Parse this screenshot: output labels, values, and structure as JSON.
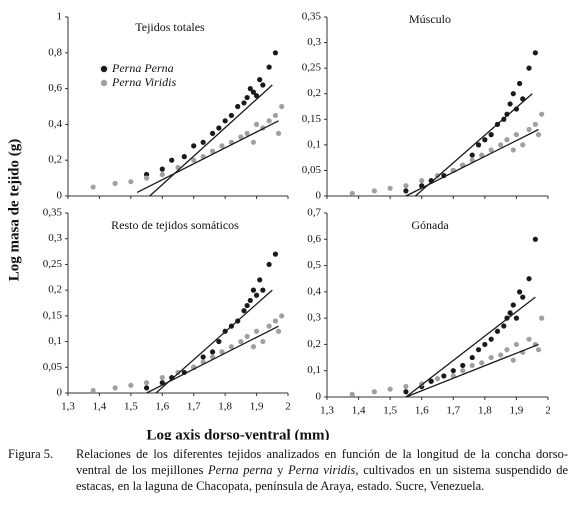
{
  "chart_data": [
    {
      "type": "scatter",
      "title": "Tejidos totales",
      "xlim": [
        1.3,
        2
      ],
      "xticks": [
        1.3,
        1.4,
        1.5,
        1.6,
        1.7,
        1.8,
        1.9,
        2
      ],
      "ylim": [
        0,
        1
      ],
      "yticks": [
        0,
        {
          "value": 0.2,
          "label": "0,2"
        },
        {
          "value": 0.4,
          "label": "0,4"
        },
        {
          "value": 0.6,
          "label": "0,6"
        },
        {
          "value": 0.8,
          "label": "0,8"
        },
        1
      ],
      "legend": "upper left",
      "series": [
        {
          "name": "Perna Perna",
          "color": "#1a1a1a",
          "x": [
            1.55,
            1.6,
            1.63,
            1.67,
            1.7,
            1.73,
            1.76,
            1.78,
            1.8,
            1.82,
            1.84,
            1.86,
            1.87,
            1.88,
            1.89,
            1.9,
            1.91,
            1.92,
            1.94,
            1.96
          ],
          "values": [
            0.12,
            0.15,
            0.2,
            0.22,
            0.28,
            0.3,
            0.35,
            0.38,
            0.42,
            0.45,
            0.5,
            0.52,
            0.55,
            0.6,
            0.58,
            0.56,
            0.65,
            0.62,
            0.72,
            0.8
          ]
        },
        {
          "name": "Perna Viridis",
          "color": "#a0a0a0",
          "x": [
            1.38,
            1.45,
            1.5,
            1.55,
            1.6,
            1.65,
            1.7,
            1.73,
            1.76,
            1.79,
            1.82,
            1.85,
            1.87,
            1.89,
            1.9,
            1.92,
            1.94,
            1.96,
            1.97,
            1.98
          ],
          "values": [
            0.05,
            0.07,
            0.08,
            0.1,
            0.12,
            0.16,
            0.2,
            0.22,
            0.25,
            0.28,
            0.3,
            0.33,
            0.35,
            0.3,
            0.4,
            0.38,
            0.42,
            0.45,
            0.35,
            0.5
          ]
        }
      ],
      "lines": [
        {
          "color": "#1a1a1a",
          "x": [
            1.56,
            1.95
          ],
          "values": [
            0,
            0.62
          ]
        },
        {
          "color": "#1a1a1a",
          "x": [
            1.52,
            1.97
          ],
          "values": [
            0.02,
            0.42
          ]
        }
      ]
    },
    {
      "type": "scatter",
      "title": "Músculo",
      "xlim": [
        1.3,
        2
      ],
      "xticks": [
        1.3,
        1.4,
        1.5,
        1.6,
        1.7,
        1.8,
        1.9,
        2
      ],
      "ylim": [
        0,
        0.35
      ],
      "yticks": [
        0,
        {
          "value": 0.05,
          "label": "0,05"
        },
        {
          "value": 0.1,
          "label": "0,1"
        },
        {
          "value": 0.15,
          "label": "0,15"
        },
        {
          "value": 0.2,
          "label": "0,2"
        },
        {
          "value": 0.25,
          "label": "0,25"
        },
        {
          "value": 0.3,
          "label": "0,3"
        },
        {
          "value": 0.35,
          "label": "0,35"
        }
      ],
      "series": [
        {
          "color": "#1a1a1a",
          "x": [
            1.55,
            1.6,
            1.63,
            1.67,
            1.7,
            1.73,
            1.76,
            1.78,
            1.8,
            1.82,
            1.84,
            1.86,
            1.87,
            1.88,
            1.89,
            1.9,
            1.91,
            1.92,
            1.94,
            1.96
          ],
          "values": [
            0.01,
            0.02,
            0.03,
            0.04,
            0.05,
            0.06,
            0.08,
            0.1,
            0.11,
            0.12,
            0.14,
            0.15,
            0.16,
            0.18,
            0.2,
            0.17,
            0.22,
            0.19,
            0.25,
            0.28
          ]
        },
        {
          "color": "#a0a0a0",
          "x": [
            1.38,
            1.45,
            1.5,
            1.55,
            1.6,
            1.65,
            1.7,
            1.73,
            1.76,
            1.79,
            1.82,
            1.85,
            1.87,
            1.89,
            1.9,
            1.92,
            1.94,
            1.96,
            1.97,
            1.98
          ],
          "values": [
            0.005,
            0.01,
            0.015,
            0.02,
            0.03,
            0.04,
            0.05,
            0.06,
            0.07,
            0.08,
            0.09,
            0.1,
            0.11,
            0.09,
            0.12,
            0.1,
            0.13,
            0.14,
            0.12,
            0.16
          ]
        }
      ],
      "lines": [
        {
          "color": "#1a1a1a",
          "x": [
            1.58,
            1.95
          ],
          "values": [
            0,
            0.2
          ]
        },
        {
          "color": "#1a1a1a",
          "x": [
            1.55,
            1.97
          ],
          "values": [
            0,
            0.13
          ]
        }
      ]
    },
    {
      "type": "scatter",
      "title": "Resto de tejidos somáticos",
      "xlim": [
        1.3,
        2
      ],
      "xticks": [
        {
          "value": 1.3,
          "label": "1,3"
        },
        {
          "value": 1.4,
          "label": "1,4"
        },
        {
          "value": 1.5,
          "label": "1,5"
        },
        {
          "value": 1.6,
          "label": "1,6"
        },
        {
          "value": 1.7,
          "label": "1,7"
        },
        {
          "value": 1.8,
          "label": "1,8"
        },
        {
          "value": 1.9,
          "label": "1,9"
        },
        2
      ],
      "ylim": [
        0,
        0.35
      ],
      "yticks": [
        0,
        {
          "value": 0.05,
          "label": "0,05"
        },
        {
          "value": 0.1,
          "label": "0,1"
        },
        {
          "value": 0.15,
          "label": "0,15"
        },
        {
          "value": 0.2,
          "label": "0,2"
        },
        {
          "value": 0.25,
          "label": "0,25"
        },
        {
          "value": 0.3,
          "label": "0,3"
        },
        {
          "value": 0.35,
          "label": "0,35"
        }
      ],
      "series": [
        {
          "color": "#1a1a1a",
          "x": [
            1.55,
            1.6,
            1.63,
            1.67,
            1.7,
            1.73,
            1.76,
            1.78,
            1.8,
            1.82,
            1.84,
            1.86,
            1.87,
            1.88,
            1.89,
            1.9,
            1.91,
            1.92,
            1.94,
            1.96
          ],
          "values": [
            0.01,
            0.02,
            0.03,
            0.04,
            0.05,
            0.07,
            0.08,
            0.1,
            0.12,
            0.13,
            0.14,
            0.16,
            0.17,
            0.18,
            0.2,
            0.19,
            0.22,
            0.2,
            0.25,
            0.27
          ]
        },
        {
          "color": "#a0a0a0",
          "x": [
            1.38,
            1.45,
            1.5,
            1.55,
            1.6,
            1.65,
            1.7,
            1.73,
            1.76,
            1.79,
            1.82,
            1.85,
            1.87,
            1.89,
            1.9,
            1.92,
            1.94,
            1.96,
            1.97,
            1.98
          ],
          "values": [
            0.005,
            0.01,
            0.015,
            0.02,
            0.03,
            0.04,
            0.05,
            0.06,
            0.07,
            0.08,
            0.09,
            0.1,
            0.11,
            0.09,
            0.12,
            0.1,
            0.13,
            0.14,
            0.12,
            0.15
          ]
        }
      ],
      "lines": [
        {
          "color": "#1a1a1a",
          "x": [
            1.58,
            1.95
          ],
          "values": [
            0,
            0.2
          ]
        },
        {
          "color": "#1a1a1a",
          "x": [
            1.55,
            1.97
          ],
          "values": [
            0,
            0.13
          ]
        }
      ]
    },
    {
      "type": "scatter",
      "title": "Gónada",
      "xlim": [
        1.3,
        2
      ],
      "xticks": [
        {
          "value": 1.3,
          "label": "1,3"
        },
        {
          "value": 1.4,
          "label": "1,4"
        },
        {
          "value": 1.5,
          "label": "1,5"
        },
        {
          "value": 1.6,
          "label": "1,6"
        },
        {
          "value": 1.7,
          "label": "1,7"
        },
        {
          "value": 1.8,
          "label": "1,8"
        },
        {
          "value": 1.9,
          "label": "1,9"
        },
        2
      ],
      "ylim": [
        0,
        0.7
      ],
      "yticks": [
        0,
        {
          "value": 0.1,
          "label": "0,1"
        },
        {
          "value": 0.2,
          "label": "0,2"
        },
        {
          "value": 0.3,
          "label": "0,3"
        },
        {
          "value": 0.4,
          "label": "0,4"
        },
        {
          "value": 0.5,
          "label": "0,5"
        },
        {
          "value": 0.6,
          "label": "0,6"
        },
        {
          "value": 0.7,
          "label": "0,7"
        }
      ],
      "series": [
        {
          "color": "#1a1a1a",
          "x": [
            1.55,
            1.6,
            1.63,
            1.67,
            1.7,
            1.73,
            1.76,
            1.78,
            1.8,
            1.82,
            1.84,
            1.86,
            1.87,
            1.88,
            1.89,
            1.9,
            1.91,
            1.92,
            1.94,
            1.96
          ],
          "values": [
            0.02,
            0.04,
            0.06,
            0.08,
            0.1,
            0.12,
            0.15,
            0.18,
            0.2,
            0.22,
            0.25,
            0.27,
            0.3,
            0.32,
            0.35,
            0.3,
            0.4,
            0.38,
            0.45,
            0.6
          ]
        },
        {
          "color": "#a0a0a0",
          "x": [
            1.38,
            1.45,
            1.5,
            1.55,
            1.6,
            1.65,
            1.7,
            1.73,
            1.76,
            1.79,
            1.82,
            1.85,
            1.87,
            1.89,
            1.9,
            1.92,
            1.94,
            1.96,
            1.97,
            1.98
          ],
          "values": [
            0.01,
            0.02,
            0.03,
            0.04,
            0.05,
            0.07,
            0.08,
            0.1,
            0.12,
            0.13,
            0.15,
            0.16,
            0.18,
            0.14,
            0.2,
            0.17,
            0.22,
            0.2,
            0.18,
            0.3
          ]
        }
      ],
      "lines": [
        {
          "color": "#1a1a1a",
          "x": [
            1.55,
            1.96
          ],
          "values": [
            0,
            0.38
          ]
        },
        {
          "color": "#1a1a1a",
          "x": [
            1.55,
            1.97
          ],
          "values": [
            0,
            0.2
          ]
        }
      ]
    }
  ],
  "xlabel": "Log axis dorso-ventral (mm)",
  "ylabel": "Log masa de tejido (g)",
  "caption": {
    "label": "Figura 5.",
    "text1": "Relaciones de los diferentes tejidos analizados en función de la longitud de la concha dorso-ventral de los mejillones ",
    "species1": "Perna perna",
    "text2": " y ",
    "species2": "Perna viridis",
    "text3": ", cultivados en un sistema suspendido de estacas, en la laguna de Chacopata, península de Araya, estado. Sucre, Venezuela."
  }
}
